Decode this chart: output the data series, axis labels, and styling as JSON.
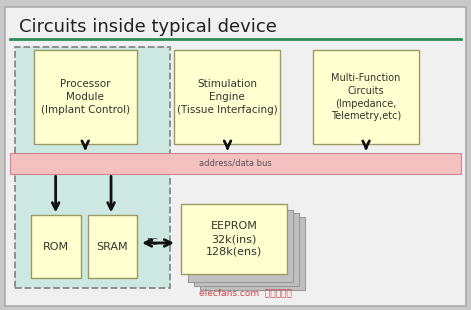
{
  "title": "Circuits inside typical device",
  "title_fontsize": 13,
  "title_color": "#222222",
  "teal_line_color": "#2e8b57",
  "fig_bg": "#c8c8c8",
  "ax_bg": "#e8e8e8",
  "outer_bg": "#f0f0f0",
  "dashed_box_color": "#888888",
  "dashed_box_fill": "#cce8e0",
  "yellow_box_fill": "#ffffd0",
  "yellow_box_edge": "#999966",
  "bus_fill": "#f5c0c0",
  "bus_edge": "#cc8888",
  "bus_label": "address/data bus",
  "eeprom_shadow_color": "#c0c0c0",
  "arrow_color": "#111111",
  "text_color": "#333333",
  "watermark": "elecfans.com  电子发烧友",
  "watermark_color": "#cc2222"
}
